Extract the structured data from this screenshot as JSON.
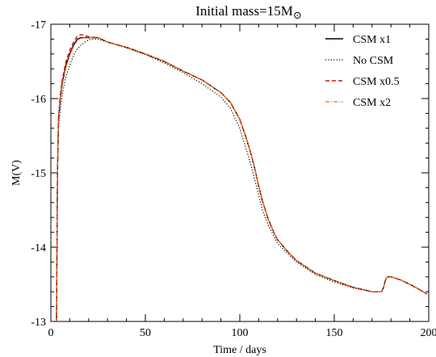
{
  "chart_data": {
    "type": "line",
    "title_main": "Initial mass=15M",
    "title_symbol": "⊙",
    "xlabel": "Time / days",
    "ylabel": "M(V)",
    "xlim": [
      0,
      200
    ],
    "ylim": [
      -13,
      -17
    ],
    "y_axis_inverted": true,
    "x_ticks": [
      0,
      50,
      100,
      150,
      200
    ],
    "x_tick_labels": [
      "0",
      "50",
      "100",
      "150",
      "200"
    ],
    "y_ticks": [
      -17,
      -16,
      -15,
      -14,
      -13
    ],
    "y_tick_labels": [
      "-17",
      "-16",
      "-15",
      "-14",
      "-13"
    ],
    "grid": false,
    "legend_position": "top-right",
    "series": [
      {
        "name": "CSM x1",
        "color": "#000000",
        "style": "solid",
        "x": [
          3,
          3.5,
          4,
          5,
          6,
          8,
          10,
          12,
          14,
          16,
          18,
          20,
          25,
          30,
          40,
          50,
          60,
          70,
          80,
          90,
          95,
          100,
          103,
          106,
          108,
          110,
          112,
          115,
          118,
          120,
          125,
          130,
          140,
          150,
          160,
          170,
          175,
          176,
          177,
          178,
          180,
          185,
          190,
          195,
          199
        ],
        "y": [
          -13.0,
          -15.0,
          -15.7,
          -16.0,
          -16.2,
          -16.45,
          -16.6,
          -16.72,
          -16.8,
          -16.82,
          -16.82,
          -16.82,
          -16.82,
          -16.76,
          -16.69,
          -16.6,
          -16.5,
          -16.37,
          -16.25,
          -16.08,
          -15.95,
          -15.72,
          -15.5,
          -15.25,
          -15.05,
          -14.82,
          -14.62,
          -14.38,
          -14.2,
          -14.1,
          -13.95,
          -13.82,
          -13.65,
          -13.55,
          -13.46,
          -13.4,
          -13.4,
          -13.45,
          -13.55,
          -13.6,
          -13.6,
          -13.56,
          -13.5,
          -13.43,
          -13.37
        ]
      },
      {
        "name": "No CSM",
        "color": "#000000",
        "style": "dotted",
        "x": [
          3,
          3.5,
          4,
          5,
          6,
          8,
          10,
          12,
          14,
          16,
          18,
          20,
          22,
          25,
          30,
          40,
          50,
          60,
          70,
          80,
          90,
          95,
          100,
          103,
          106,
          108,
          110,
          112,
          115,
          118,
          120,
          125,
          130,
          140,
          150,
          160,
          170,
          175,
          176,
          177,
          178,
          180,
          185,
          190,
          195,
          199
        ],
        "y": [
          -13.0,
          -15.0,
          -15.6,
          -15.85,
          -16.05,
          -16.3,
          -16.45,
          -16.58,
          -16.67,
          -16.72,
          -16.76,
          -16.79,
          -16.8,
          -16.8,
          -16.76,
          -16.68,
          -16.59,
          -16.48,
          -16.35,
          -16.2,
          -16.02,
          -15.87,
          -15.6,
          -15.35,
          -15.1,
          -14.9,
          -14.7,
          -14.5,
          -14.3,
          -14.15,
          -14.05,
          -13.92,
          -13.8,
          -13.63,
          -13.53,
          -13.45,
          -13.4,
          -13.4,
          -13.45,
          -13.55,
          -13.6,
          -13.6,
          -13.56,
          -13.5,
          -13.43,
          -13.37
        ]
      },
      {
        "name": "CSM x0.5",
        "color": "#d0160f",
        "style": "dashed",
        "x": [
          3,
          3.5,
          4,
          5,
          6,
          8,
          10,
          12,
          14,
          16,
          18,
          20,
          25,
          30,
          40,
          50,
          60,
          70,
          80,
          90,
          95,
          100,
          103,
          106,
          108,
          110,
          112,
          115,
          118,
          120,
          125,
          130,
          140,
          150,
          160,
          170,
          175,
          176,
          177,
          178,
          180,
          185,
          190,
          195,
          199
        ],
        "y": [
          -13.0,
          -15.05,
          -15.75,
          -16.05,
          -16.25,
          -16.5,
          -16.65,
          -16.76,
          -16.84,
          -16.86,
          -16.85,
          -16.83,
          -16.82,
          -16.76,
          -16.69,
          -16.6,
          -16.5,
          -16.37,
          -16.25,
          -16.08,
          -15.95,
          -15.72,
          -15.5,
          -15.25,
          -15.05,
          -14.82,
          -14.62,
          -14.38,
          -14.2,
          -14.1,
          -13.95,
          -13.82,
          -13.65,
          -13.55,
          -13.46,
          -13.4,
          -13.4,
          -13.45,
          -13.55,
          -13.6,
          -13.6,
          -13.56,
          -13.5,
          -13.43,
          -13.37
        ]
      },
      {
        "name": "CSM x2",
        "color": "#e8761a",
        "style": "dashdot",
        "x": [
          3,
          3.5,
          4,
          5,
          6,
          8,
          10,
          12,
          14,
          16,
          18,
          20,
          25,
          30,
          40,
          50,
          60,
          70,
          80,
          90,
          95,
          100,
          103,
          106,
          108,
          110,
          112,
          115,
          118,
          120,
          125,
          130,
          140,
          150,
          160,
          170,
          175,
          176,
          177,
          178,
          180,
          185,
          190,
          195,
          199
        ],
        "y": [
          -13.0,
          -14.95,
          -15.68,
          -15.98,
          -16.18,
          -16.42,
          -16.58,
          -16.7,
          -16.78,
          -16.81,
          -16.82,
          -16.82,
          -16.82,
          -16.76,
          -16.69,
          -16.6,
          -16.5,
          -16.37,
          -16.25,
          -16.08,
          -15.95,
          -15.72,
          -15.5,
          -15.25,
          -15.05,
          -14.82,
          -14.62,
          -14.38,
          -14.2,
          -14.1,
          -13.95,
          -13.82,
          -13.65,
          -13.55,
          -13.46,
          -13.4,
          -13.4,
          -13.45,
          -13.55,
          -13.6,
          -13.6,
          -13.56,
          -13.5,
          -13.43,
          -13.37
        ]
      }
    ]
  }
}
